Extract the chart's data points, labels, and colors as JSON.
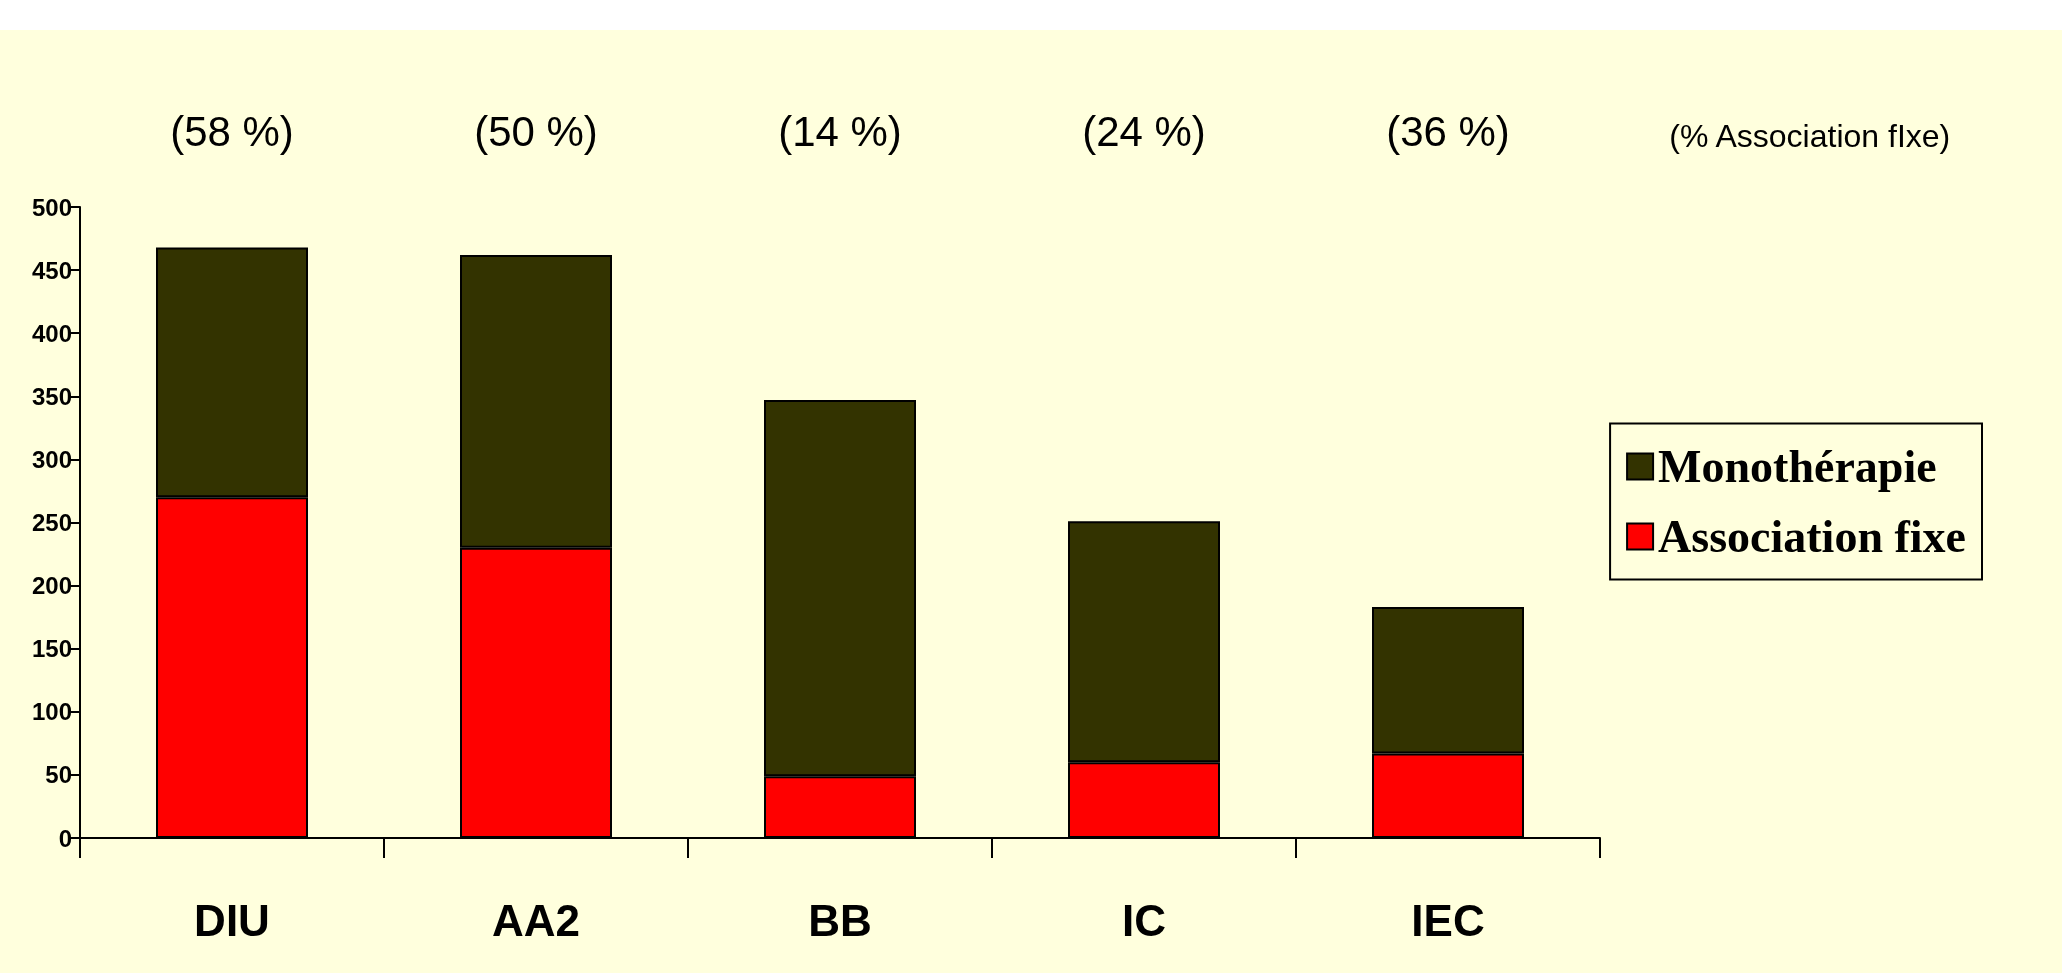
{
  "chart_data": {
    "type": "bar",
    "stacked": true,
    "categories": [
      "DIU",
      "AA2",
      "BB",
      "IC",
      "IEC"
    ],
    "series": [
      {
        "name": "Association fixe",
        "color": "#ff0000",
        "values": [
          270,
          230,
          49,
          60,
          67
        ]
      },
      {
        "name": "Monothérapie",
        "color": "#333300",
        "values": [
          198,
          232,
          298,
          191,
          116
        ]
      }
    ],
    "ylim": [
      0,
      500
    ],
    "yticks": [
      0,
      50,
      100,
      150,
      200,
      250,
      300,
      350,
      400,
      450,
      500
    ],
    "grid": false,
    "legend": "right",
    "annotations": [
      "(58 %)",
      "(50 %)",
      "(14 %)",
      "(24 %)",
      "(36 %)",
      "(% Association fIxe)"
    ]
  }
}
